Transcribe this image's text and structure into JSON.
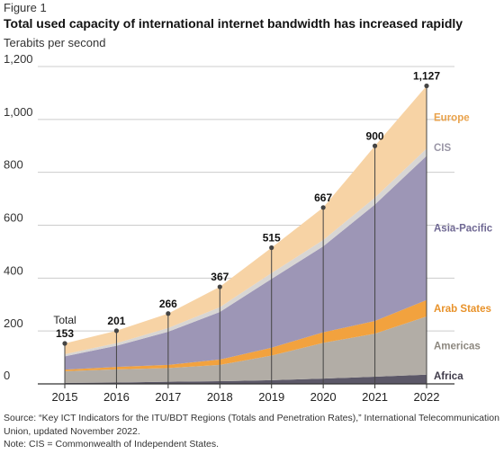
{
  "figure_label": "Figure 1",
  "title": "Total used capacity of international internet bandwidth has increased rapidly",
  "subtitle": "Terabits per second",
  "source": "Source: “Key ICT Indicators for the ITU/BDT Regions (Totals and Penetration Rates),” International Telecommunication Union, updated November 2022.",
  "note": "Note: CIS = Commonwealth of Independent States.",
  "total_label": "Total",
  "colors": {
    "Africa": "#5c5868",
    "Americas": "#b2ada6",
    "Arab States": "#f2a23e",
    "Asia-Pacific": "#9d96b6",
    "CIS": "#d8d6d4",
    "Europe": "#f7d3a5",
    "axis": "#333333",
    "grid": "#cccccc",
    "marker": "#444444"
  },
  "chart_data": {
    "type": "area",
    "stacked": true,
    "x": [
      "2015",
      "2016",
      "2017",
      "2018",
      "2019",
      "2020",
      "2021",
      "2022"
    ],
    "ylim": [
      0,
      1200
    ],
    "yticks": [
      "0",
      "200",
      "400",
      "600",
      "800",
      "1,000",
      "1,200"
    ],
    "grid": true,
    "totals": [
      "153",
      "201",
      "266",
      "367",
      "515",
      "667",
      "900",
      "1,127"
    ],
    "series": [
      {
        "name": "Africa",
        "values": [
          4,
          5,
          8,
          10,
          14,
          20,
          27,
          35
        ]
      },
      {
        "name": "Americas",
        "values": [
          44,
          50,
          52,
          62,
          93,
          135,
          163,
          220
        ]
      },
      {
        "name": "Arab States",
        "values": [
          6,
          9,
          12,
          20,
          30,
          40,
          48,
          62
        ]
      },
      {
        "name": "Asia-Pacific",
        "values": [
          50,
          80,
          125,
          180,
          260,
          325,
          440,
          545
        ]
      },
      {
        "name": "CIS",
        "values": [
          8,
          10,
          14,
          18,
          22,
          24,
          26,
          28
        ]
      },
      {
        "name": "Europe",
        "values": [
          41,
          47,
          55,
          77,
          96,
          123,
          196,
          237
        ]
      }
    ]
  }
}
